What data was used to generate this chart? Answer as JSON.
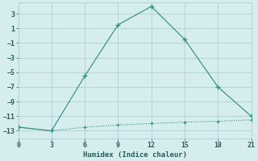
{
  "line1_x": [
    0,
    3,
    6,
    9,
    12,
    15,
    18,
    21
  ],
  "line1_y": [
    -12.5,
    -13,
    -5.5,
    1.5,
    4,
    -0.5,
    -7,
    -11
  ],
  "line2_x": [
    0,
    3,
    6,
    9,
    12,
    15,
    18,
    21
  ],
  "line2_y": [
    -12.5,
    -13,
    -12.5,
    -12.2,
    -12.0,
    -11.8,
    -11.7,
    -11.5
  ],
  "line_color": "#2e8b7a",
  "bg_color": "#d6edf0",
  "grid_color": "#b0cfd4",
  "xlabel": "Humidex (Indice chaleur)",
  "xlim": [
    0,
    21
  ],
  "ylim": [
    -14,
    4.5
  ],
  "xticks": [
    0,
    3,
    6,
    9,
    12,
    15,
    18,
    21
  ],
  "yticks": [
    -13,
    -11,
    -9,
    -7,
    -5,
    -3,
    -1,
    1,
    3
  ],
  "font_color": "#2a5a5a",
  "xlabel_fontsize": 6.5,
  "tick_fontsize": 6.0
}
